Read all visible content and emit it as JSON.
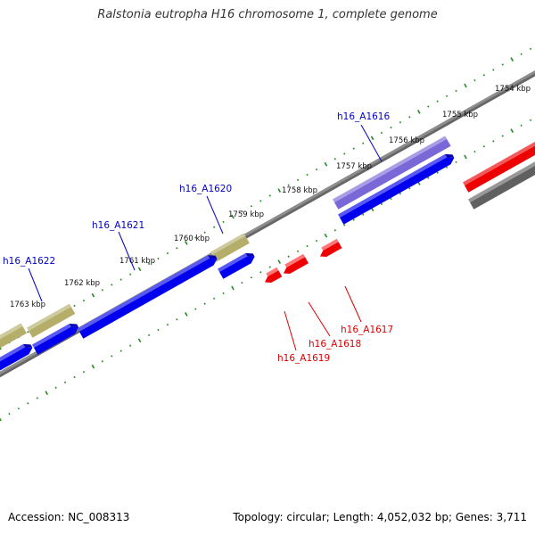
{
  "title": "Ralstonia eutropha H16 chromosome 1, complete genome",
  "footer": {
    "accession": "Accession: NC_008313",
    "summary": "Topology: circular; Length: 4,052,032 bp; Genes: 3,711"
  },
  "colors": {
    "backbone": "#8c8c8c",
    "tick": "#228b22",
    "forward_label": "#0000cc",
    "reverse_label": "#dd0000"
  },
  "ticks": {
    "labels": [
      "1754 kbp",
      "1755 kbp",
      "1756 kbp",
      "1757 kbp",
      "1758 kbp",
      "1759 kbp",
      "1760 kbp",
      "1761 kbp",
      "1762 kbp",
      "1763 kbp"
    ]
  },
  "genes": [
    {
      "id": "h16_A1616",
      "strand": "+",
      "color": "#7b68d8",
      "label_color": "#0000cc"
    },
    {
      "id": "h16_A1620",
      "strand": "+",
      "color": "#bdb76b",
      "label_color": "#0000cc"
    },
    {
      "id": "h16_A1621",
      "strand": "+",
      "color": "#0000ee",
      "label_color": "#0000cc"
    },
    {
      "id": "h16_A1622",
      "strand": "+",
      "color": "#bdb76b",
      "label_color": "#0000cc"
    },
    {
      "id": "h16_A1617",
      "strand": "-",
      "color": "#ee0000",
      "label_color": "#dd0000"
    },
    {
      "id": "h16_A1618",
      "strand": "-",
      "color": "#ee0000",
      "label_color": "#dd0000"
    },
    {
      "id": "h16_A1619",
      "strand": "-",
      "color": "#ee0000",
      "label_color": "#dd0000"
    }
  ]
}
